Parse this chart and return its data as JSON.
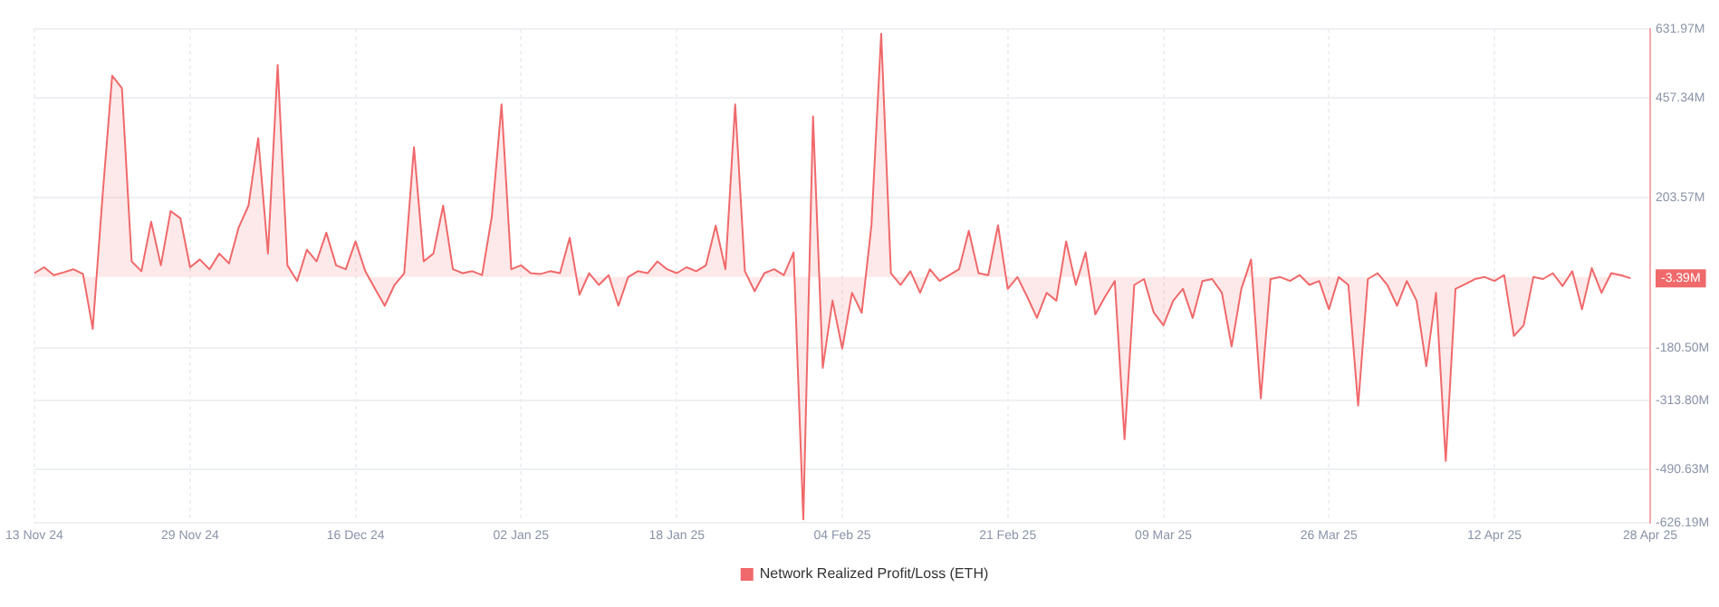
{
  "chart_data": {
    "type": "area",
    "x": [
      "2024-11-13",
      "2024-11-14",
      "2024-11-15",
      "2024-11-16",
      "2024-11-17",
      "2024-11-18",
      "2024-11-19",
      "2024-11-20",
      "2024-11-21",
      "2024-11-22",
      "2024-11-23",
      "2024-11-24",
      "2024-11-25",
      "2024-11-26",
      "2024-11-27",
      "2024-11-28",
      "2024-11-29",
      "2024-11-30",
      "2024-12-01",
      "2024-12-02",
      "2024-12-03",
      "2024-12-04",
      "2024-12-05",
      "2024-12-06",
      "2024-12-07",
      "2024-12-08",
      "2024-12-09",
      "2024-12-10",
      "2024-12-11",
      "2024-12-12",
      "2024-12-13",
      "2024-12-14",
      "2024-12-15",
      "2024-12-16",
      "2024-12-17",
      "2024-12-18",
      "2024-12-19",
      "2024-12-20",
      "2024-12-21",
      "2024-12-22",
      "2024-12-23",
      "2024-12-24",
      "2024-12-25",
      "2024-12-26",
      "2024-12-27",
      "2024-12-28",
      "2024-12-29",
      "2024-12-30",
      "2024-12-31",
      "2025-01-01",
      "2025-01-02",
      "2025-01-03",
      "2025-01-04",
      "2025-01-05",
      "2025-01-06",
      "2025-01-07",
      "2025-01-08",
      "2025-01-09",
      "2025-01-10",
      "2025-01-11",
      "2025-01-12",
      "2025-01-13",
      "2025-01-14",
      "2025-01-15",
      "2025-01-16",
      "2025-01-17",
      "2025-01-18",
      "2025-01-19",
      "2025-01-20",
      "2025-01-21",
      "2025-01-22",
      "2025-01-23",
      "2025-01-24",
      "2025-01-25",
      "2025-01-26",
      "2025-01-27",
      "2025-01-28",
      "2025-01-29",
      "2025-01-30",
      "2025-01-31",
      "2025-02-01",
      "2025-02-02",
      "2025-02-03",
      "2025-02-04",
      "2025-02-05",
      "2025-02-06",
      "2025-02-07",
      "2025-02-08",
      "2025-02-09",
      "2025-02-10",
      "2025-02-11",
      "2025-02-12",
      "2025-02-13",
      "2025-02-14",
      "2025-02-15",
      "2025-02-16",
      "2025-02-17",
      "2025-02-18",
      "2025-02-19",
      "2025-02-20",
      "2025-02-21",
      "2025-02-22",
      "2025-02-23",
      "2025-02-24",
      "2025-02-25",
      "2025-02-26",
      "2025-02-27",
      "2025-02-28",
      "2025-03-01",
      "2025-03-02",
      "2025-03-03",
      "2025-03-04",
      "2025-03-05",
      "2025-03-06",
      "2025-03-07",
      "2025-03-08",
      "2025-03-09",
      "2025-03-10",
      "2025-03-11",
      "2025-03-12",
      "2025-03-13",
      "2025-03-14",
      "2025-03-15",
      "2025-03-16",
      "2025-03-17",
      "2025-03-18",
      "2025-03-19",
      "2025-03-20",
      "2025-03-21",
      "2025-03-22",
      "2025-03-23",
      "2025-03-24",
      "2025-03-25",
      "2025-03-26",
      "2025-03-27",
      "2025-03-28",
      "2025-03-29",
      "2025-03-30",
      "2025-03-31",
      "2025-04-01",
      "2025-04-02",
      "2025-04-03",
      "2025-04-04",
      "2025-04-05",
      "2025-04-06",
      "2025-04-07",
      "2025-04-08",
      "2025-04-09",
      "2025-04-10",
      "2025-04-11",
      "2025-04-12",
      "2025-04-13",
      "2025-04-14",
      "2025-04-15",
      "2025-04-16",
      "2025-04-17",
      "2025-04-18",
      "2025-04-19",
      "2025-04-20",
      "2025-04-21",
      "2025-04-22",
      "2025-04-23",
      "2025-04-24",
      "2025-04-25",
      "2025-04-26"
    ],
    "series": [
      {
        "name": "Network Realized Profit/Loss (ETH)",
        "color": "#f0696b",
        "values": [
          10,
          25,
          5,
          12,
          20,
          8,
          -132,
          204,
          513,
          481,
          40,
          15,
          141,
          30,
          168,
          150,
          25,
          45,
          20,
          60,
          35,
          127,
          182,
          354,
          60,
          540,
          30,
          -10,
          70,
          40,
          113,
          30,
          20,
          91,
          15,
          -30,
          -73,
          -20,
          10,
          331,
          40,
          60,
          182,
          20,
          10,
          15,
          5,
          154,
          440,
          20,
          30,
          10,
          8,
          15,
          10,
          100,
          -45,
          10,
          -20,
          5,
          -73,
          0,
          15,
          10,
          40,
          20,
          10,
          25,
          15,
          30,
          131,
          20,
          440,
          15,
          -36,
          10,
          20,
          5,
          63,
          -617,
          409,
          -231,
          -60,
          -182,
          -40,
          -91,
          132,
          620,
          10,
          -20,
          15,
          -40,
          20,
          -10,
          5,
          20,
          118,
          10,
          5,
          132,
          -30,
          0,
          -50,
          -104,
          -40,
          -60,
          91,
          -20,
          63,
          -95,
          -50,
          -10,
          -413,
          -20,
          -5,
          -90,
          -123,
          -60,
          -30,
          -104,
          -10,
          -5,
          -40,
          -177,
          -30,
          45,
          -309,
          -5,
          0,
          -10,
          5,
          -20,
          -10,
          -82,
          0,
          -20,
          -327,
          -5,
          10,
          -20,
          -73,
          -10,
          -60,
          -227,
          -40,
          -468,
          -30,
          -18,
          -5,
          0,
          -10,
          5,
          -150,
          -123,
          0,
          -5,
          10,
          -23,
          15,
          -82,
          23,
          -40,
          10,
          5,
          -3
        ]
      }
    ],
    "xlim": [
      "2024-11-13",
      "2025-04-28"
    ],
    "xticks": [
      {
        "value": "2024-11-13",
        "label": "13 Nov 24"
      },
      {
        "value": "2024-11-29",
        "label": "29 Nov 24"
      },
      {
        "value": "2024-12-16",
        "label": "16 Dec 24"
      },
      {
        "value": "2025-01-02",
        "label": "02 Jan 25"
      },
      {
        "value": "2025-01-18",
        "label": "18 Jan 25"
      },
      {
        "value": "2025-02-04",
        "label": "04 Feb 25"
      },
      {
        "value": "2025-02-21",
        "label": "21 Feb 25"
      },
      {
        "value": "2025-03-09",
        "label": "09 Mar 25"
      },
      {
        "value": "2025-03-26",
        "label": "26 Mar 25"
      },
      {
        "value": "2025-04-12",
        "label": "12 Apr 25"
      },
      {
        "value": "2025-04-28",
        "label": "28 Apr 25"
      }
    ],
    "ylim": [
      -626.19,
      631.97
    ],
    "yticks": [
      {
        "value": 631.97,
        "label": "631.97M"
      },
      {
        "value": 457.34,
        "label": "457.34M"
      },
      {
        "value": 203.57,
        "label": "203.57M"
      },
      {
        "value": -180.5,
        "label": "-180.50M"
      },
      {
        "value": -313.8,
        "label": "-313.80M"
      },
      {
        "value": -490.63,
        "label": "-490.63M"
      },
      {
        "value": -626.19,
        "label": "-626.19M"
      }
    ],
    "annotations": [
      "-3.39M"
    ],
    "grid": true,
    "legend": "bottom",
    "marker": "none"
  }
}
